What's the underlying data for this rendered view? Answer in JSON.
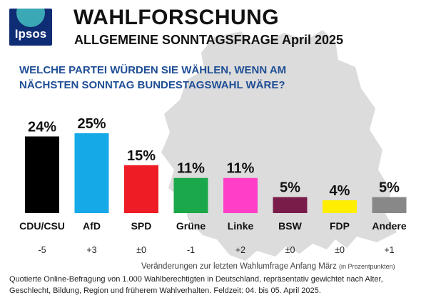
{
  "header": {
    "logo_text": "Ipsos",
    "title": "WAHLFORSCHUNG",
    "subtitle": "ALLGEMEINE SONNTAGSFRAGE April 2025"
  },
  "question": "WELCHE PARTEI WÜRDEN SIE WÄHLEN, WENN AM NÄCHSTEN SONNTAG BUNDESTAGSWAHL WÄRE?",
  "changes_note": "Veränderungen zur letzten Wahlumfrage Anfang März",
  "changes_note_unit": "(in Prozentpunkten)",
  "footnote": "Quotierte Online-Befragung von 1.000 Wahlberechtigten in Deutschland, repräsentativ gewichtet nach Alter, Geschlecht, Bildung, Region und früherem Wahlverhalten. Feldzeit: 04. bis 05. April 2025.",
  "chart_data": {
    "type": "bar",
    "categories": [
      "CDU/CSU",
      "AfD",
      "SPD",
      "Grüne",
      "Linke",
      "BSW",
      "FDP",
      "Andere"
    ],
    "values": [
      24,
      25,
      15,
      11,
      11,
      5,
      4,
      5
    ],
    "value_labels": [
      "24%",
      "25%",
      "15%",
      "11%",
      "11%",
      "5%",
      "4%",
      "5%"
    ],
    "changes": [
      "-5",
      "+3",
      "±0",
      "-1",
      "+2",
      "±0",
      "±0",
      "+1"
    ],
    "colors": [
      "#000000",
      "#16a9e8",
      "#ee1c25",
      "#1aa84a",
      "#ff3fc8",
      "#7a1c4a",
      "#ffee00",
      "#888888"
    ],
    "unit": "%",
    "ylim": [
      0,
      25
    ],
    "grid": false,
    "legend": "none"
  }
}
